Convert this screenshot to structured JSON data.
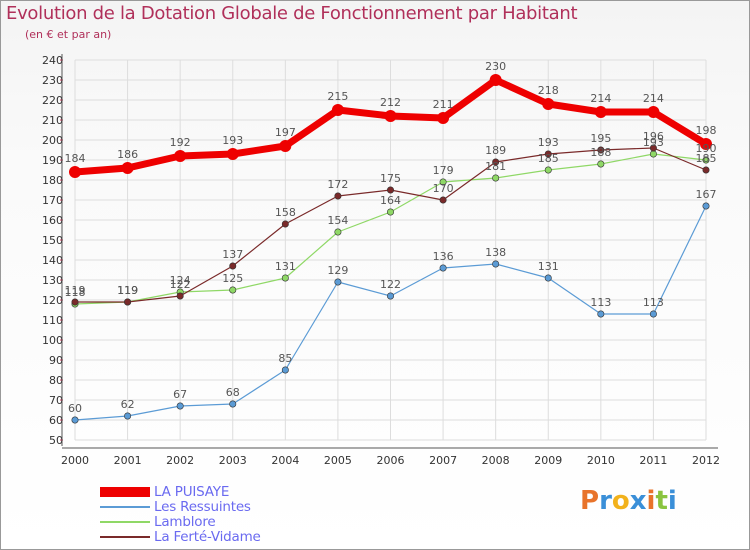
{
  "chart_data": {
    "type": "line",
    "title": "Evolution de la Dotation Globale de Fonctionnement par Habitant",
    "subtitle": "(en € et par an)",
    "xlabel": "",
    "ylabel": "",
    "categories": [
      "2000",
      "2001",
      "2002",
      "2003",
      "2004",
      "2005",
      "2006",
      "2007",
      "2008",
      "2009",
      "2010",
      "2011",
      "2012"
    ],
    "ylim": [
      50,
      240
    ],
    "yticks": [
      50,
      60,
      70,
      80,
      90,
      100,
      110,
      120,
      130,
      140,
      150,
      160,
      170,
      180,
      190,
      200,
      210,
      220,
      230,
      240
    ],
    "grid": true,
    "series": [
      {
        "name": "LA PUISAYE",
        "color": "#ee0000",
        "values": [
          184,
          186,
          192,
          193,
          197,
          215,
          212,
          211,
          230,
          218,
          214,
          214,
          198
        ]
      },
      {
        "name": "Les Ressuintes",
        "color": "#5b9bd5",
        "values": [
          60,
          62,
          67,
          68,
          85,
          129,
          122,
          136,
          138,
          131,
          113,
          113,
          167
        ]
      },
      {
        "name": "Lamblore",
        "color": "#8fd866",
        "values": [
          118,
          119,
          124,
          125,
          131,
          154,
          164,
          179,
          181,
          185,
          188,
          193,
          190
        ]
      },
      {
        "name": "La Ferté-Vidame",
        "color": "#7a2a2a",
        "values": [
          119,
          119,
          122,
          137,
          158,
          172,
          175,
          170,
          189,
          193,
          195,
          196,
          185
        ]
      }
    ]
  },
  "brand": {
    "text": "Proxiti",
    "letter_colors": [
      "#e8732a",
      "#3a8fd8",
      "#f2b21c",
      "#3a8fd8",
      "#e8732a",
      "#8ac43f",
      "#3a8fd8"
    ]
  }
}
